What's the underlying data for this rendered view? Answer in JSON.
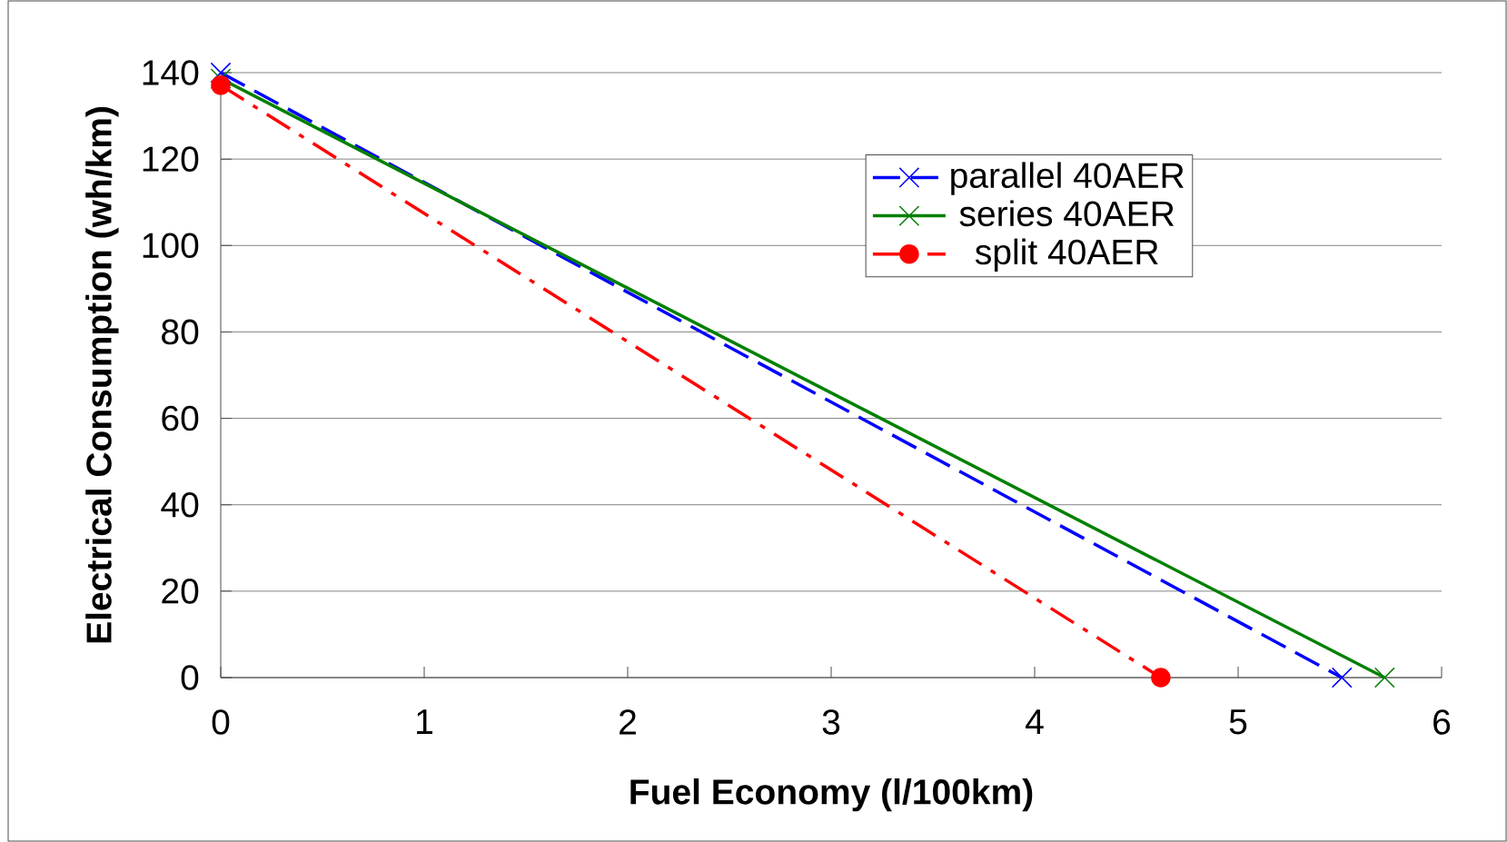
{
  "chart_data": {
    "type": "line",
    "xlabel": "Fuel Economy (l/100km)",
    "ylabel": "Electrical Consumption (wh/km)",
    "xlim": [
      0,
      6
    ],
    "ylim": [
      0,
      140
    ],
    "xticks": [
      0,
      1,
      2,
      3,
      4,
      5,
      6
    ],
    "yticks": [
      0,
      20,
      40,
      60,
      80,
      100,
      120,
      140
    ],
    "grid": "y",
    "legend": "top right",
    "series": [
      {
        "name": "parallel 40AER",
        "color": "#0000ff",
        "x": [
          0,
          5.51
        ],
        "values": [
          140,
          0
        ],
        "marker": "cross",
        "line_style": "dashed"
      },
      {
        "name": "series 40AER",
        "color": "#008000",
        "x": [
          0,
          5.72
        ],
        "values": [
          138.6,
          0
        ],
        "marker": "cross",
        "line_style": "solid"
      },
      {
        "name": "split 40AER",
        "color": "#ff0000",
        "x": [
          0,
          4.62
        ],
        "values": [
          137.1,
          0
        ],
        "marker": "circle",
        "line_style": "dashdot"
      }
    ]
  }
}
